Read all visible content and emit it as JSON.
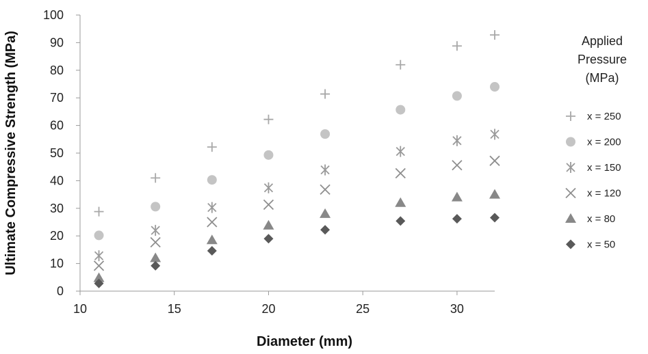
{
  "chart_data": {
    "type": "scatter",
    "title": "",
    "xlabel": "Diameter (mm)",
    "ylabel": "Ultimate Compressive Strength (MPa)",
    "xlim": [
      10,
      32
    ],
    "ylim": [
      0,
      100
    ],
    "xticks": [
      10,
      15,
      20,
      25,
      30
    ],
    "yticks": [
      0,
      10,
      20,
      30,
      40,
      50,
      60,
      70,
      80,
      90,
      100
    ],
    "grid": false,
    "legend_title": [
      "Applied",
      "Pressure",
      "(MPa)"
    ],
    "legend_position": "right",
    "x": [
      11,
      14,
      17,
      20,
      23,
      27,
      30,
      32
    ],
    "series": [
      {
        "name": "x = 250",
        "marker": "plus",
        "color": "#a8a8a8",
        "values": [
          28.8,
          41,
          52.2,
          62.2,
          71.4,
          82,
          88.8,
          92.8
        ]
      },
      {
        "name": "x = 200",
        "marker": "circle",
        "color": "#c4c4c4",
        "values": [
          20.2,
          30.6,
          40.3,
          49.3,
          56.9,
          65.7,
          70.7,
          74
        ]
      },
      {
        "name": "x = 150",
        "marker": "asterisk",
        "color": "#9a9a9a",
        "values": [
          12.8,
          22,
          30.3,
          37.4,
          43.9,
          50.6,
          54.5,
          56.8
        ]
      },
      {
        "name": "x = 120",
        "marker": "cross",
        "color": "#8e8e8e",
        "values": [
          9.2,
          17.7,
          25,
          31.3,
          36.8,
          42.7,
          45.6,
          47.2
        ]
      },
      {
        "name": "x = 80",
        "marker": "triangle",
        "color": "#888888",
        "values": [
          4.8,
          12,
          18.5,
          23.8,
          28,
          32,
          34,
          35
        ]
      },
      {
        "name": "x = 50",
        "marker": "diamond",
        "color": "#595959",
        "values": [
          2.8,
          9.2,
          14.6,
          19,
          22.2,
          25.4,
          26.2,
          26.6
        ]
      }
    ]
  }
}
